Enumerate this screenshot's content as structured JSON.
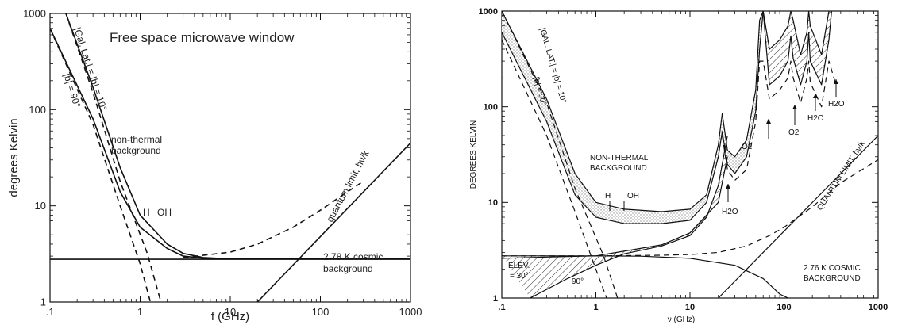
{
  "chart_data": [
    {
      "type": "line",
      "title": "Free space microwave window",
      "xlabel": "f (GHz)",
      "ylabel": "degrees Kelvin",
      "x_scale": "log",
      "y_scale": "log",
      "xlim": [
        0.1,
        1000
      ],
      "ylim": [
        1,
        1000
      ],
      "xticks": [
        ".1",
        "1",
        "10",
        "100",
        "1000"
      ],
      "yticks": [
        "1",
        "10",
        "100",
        "1000"
      ],
      "series": [
        {
          "style": "solid",
          "x": [
            0.1,
            0.3,
            0.6,
            1,
            2,
            3,
            5,
            10,
            1000
          ],
          "y": [
            700,
            80,
            14,
            6,
            3.6,
            3.0,
            2.85,
            2.8,
            2.8
          ]
        },
        {
          "style": "solid",
          "x": [
            0.15,
            0.3,
            0.6,
            1,
            2,
            3,
            5,
            10
          ],
          "y": [
            1000,
            170,
            25,
            8,
            4.0,
            3.2,
            2.9,
            2.8
          ]
        },
        {
          "style": "dashed",
          "x": [
            0.1,
            0.3,
            0.6,
            1.0,
            1.3
          ],
          "y": [
            700,
            70,
            10,
            2.5,
            1
          ]
        },
        {
          "style": "dashed",
          "x": [
            0.15,
            0.3,
            0.6,
            1.2,
            1.7
          ],
          "y": [
            1000,
            150,
            18,
            3.2,
            1
          ]
        },
        {
          "style": "dashed",
          "x": [
            3,
            10,
            20,
            50,
            100,
            200,
            300
          ],
          "y": [
            2.9,
            3.3,
            4.0,
            6.0,
            9.0,
            14.0,
            18.0
          ]
        },
        {
          "style": "solid",
          "x": [
            0.1,
            1000
          ],
          "y": [
            2.78,
            2.78
          ]
        },
        {
          "style": "solid",
          "x": [
            20,
            1000
          ],
          "y": [
            1,
            45
          ]
        }
      ],
      "annotations": [
        "|Gal. Lat.| = |b| = 10°",
        "|b| = 90°",
        "non-thermal",
        "background",
        "H",
        "OH",
        "quantum limit, hν/k",
        "2.78 K cosmic",
        "background"
      ]
    },
    {
      "type": "line",
      "xlabel": "ν (GHz)",
      "ylabel": "DEGREES KELVIN",
      "x_scale": "log",
      "y_scale": "log",
      "xlim": [
        0.1,
        1000
      ],
      "ylim": [
        1,
        1000
      ],
      "xticks": [
        ".1",
        "1",
        "10",
        "100",
        "1000"
      ],
      "yticks": [
        "1",
        "10",
        "100",
        "1000"
      ],
      "series": [
        {
          "style": "solid",
          "x": [
            0.1,
            0.3,
            0.6,
            1,
            2,
            5,
            10,
            15,
            20,
            22,
            25,
            30,
            40,
            50,
            55,
            60
          ],
          "y": [
            1000,
            120,
            20,
            10,
            8.5,
            8,
            8.5,
            12,
            40,
            85,
            35,
            30,
            45,
            150,
            800,
            1000
          ]
        },
        {
          "style": "solid",
          "x": [
            0.1,
            0.3,
            0.6,
            1,
            2,
            5,
            10,
            15,
            20,
            22,
            25,
            30,
            40,
            50,
            55,
            60
          ],
          "y": [
            600,
            70,
            12,
            7,
            6.0,
            6,
            6.5,
            10,
            30,
            55,
            25,
            20,
            30,
            90,
            400,
            1000
          ]
        },
        {
          "style": "solid",
          "x": [
            60,
            70,
            90,
            110,
            118,
            125,
            150,
            175,
            183,
            190,
            250,
            300,
            320
          ],
          "y": [
            1000,
            400,
            500,
            700,
            1000,
            800,
            350,
            600,
            1000,
            700,
            350,
            1000,
            1000
          ]
        },
        {
          "style": "solid",
          "x": [
            60,
            70,
            90,
            110,
            118,
            125,
            150,
            175,
            183,
            190,
            250,
            300,
            320
          ],
          "y": [
            1000,
            170,
            210,
            300,
            550,
            320,
            170,
            300,
            600,
            300,
            170,
            500,
            1000
          ]
        },
        {
          "style": "dashed",
          "x": [
            22,
            25,
            30,
            40,
            50,
            55,
            60,
            70,
            90,
            110,
            118,
            125,
            150,
            175,
            183,
            190,
            250,
            300,
            350
          ],
          "y": [
            50,
            22,
            17,
            22,
            70,
            300,
            300,
            120,
            150,
            200,
            300,
            200,
            110,
            200,
            300,
            180,
            100,
            300,
            180
          ]
        },
        {
          "style": "dashed",
          "x": [
            0.1,
            0.3,
            0.6,
            1.0,
            1.3
          ],
          "y": [
            500,
            50,
            8,
            2,
            1
          ]
        },
        {
          "style": "dashed",
          "x": [
            0.1,
            0.3,
            0.6,
            1.2,
            1.7
          ],
          "y": [
            1000,
            110,
            14,
            2.8,
            1
          ]
        },
        {
          "style": "solid",
          "x": [
            0.2,
            0.5,
            1,
            2,
            5,
            10,
            15,
            20,
            25
          ],
          "y": [
            1,
            1.6,
            2.2,
            2.9,
            3.5,
            4.5,
            7,
            15,
            50
          ]
        },
        {
          "style": "solid",
          "x": [
            0.1,
            0.3,
            1,
            5,
            10,
            20,
            25
          ],
          "y": [
            2.76,
            2.76,
            2.76,
            3.6,
            4.8,
            10,
            30
          ]
        },
        {
          "style": "dashed",
          "x": [
            0.1,
            1,
            5,
            10,
            20,
            40,
            70,
            100,
            200,
            400,
            1000
          ],
          "y": [
            2.76,
            2.76,
            2.8,
            2.85,
            3.0,
            3.5,
            4.5,
            5.5,
            9,
            16,
            28
          ]
        },
        {
          "style": "solid",
          "x": [
            0.1,
            0.3,
            1,
            3,
            10,
            30,
            60,
            90,
            110
          ],
          "y": [
            2.6,
            2.68,
            2.76,
            2.74,
            2.6,
            2.2,
            1.6,
            1.1,
            1
          ]
        },
        {
          "style": "solid",
          "x": [
            20,
            1000
          ],
          "y": [
            1,
            50
          ]
        }
      ],
      "annotations": [
        "|GAL. LAT.| = |b| = 10°",
        "|b| = 90°",
        "NON-THERMAL",
        "BACKGROUND",
        "H",
        "OH",
        "H2O",
        "O2",
        "O2",
        "H2O",
        "H2O",
        "QUANTUM LIMIT, hν/k",
        "2.76 K COSMIC",
        "BACKGROUND",
        "ELEV.",
        "= 30°",
        "90°"
      ]
    }
  ],
  "left": {
    "title": "Free space microwave window",
    "xlabel": "f (GHz)",
    "ylabel": "degrees Kelvin",
    "xticks": [
      ".1",
      "1",
      "10",
      "100",
      "1000"
    ],
    "yticks": [
      "1",
      "10",
      "100",
      "1000"
    ],
    "annot_gal": "|Gal. Lat.| = |b| = 10°",
    "annot_b90": "|b| = 90°",
    "annot_nt1": "non-thermal",
    "annot_nt2": "background",
    "annot_h": "H",
    "annot_oh": "OH",
    "annot_quantum": "quantum limit, hν/k",
    "annot_cmb1": "2.78 K cosmic",
    "annot_cmb2": "background"
  },
  "right": {
    "xlabel": "ν (GHz)",
    "ylabel": "DEGREES KELVIN",
    "xticks": [
      ".1",
      "1",
      "10",
      "100",
      "1000"
    ],
    "yticks": [
      "1",
      "10",
      "100",
      "1000"
    ],
    "annot_gal": "|GAL. LAT.| = |b| = 10°",
    "annot_b90": "|b| = 90°",
    "annot_nt1": "NON-THERMAL",
    "annot_nt2": "BACKGROUND",
    "annot_h": "H",
    "annot_oh": "OH",
    "annot_h2o_1": "H2O",
    "annot_o2_1": "O2",
    "annot_o2_2": "O2",
    "annot_h2o_2": "H2O",
    "annot_h2o_3": "H2O",
    "annot_quantum": "QUANTUM LIMIT, hν/k",
    "annot_cmb1": "2.76 K COSMIC",
    "annot_cmb2": "BACKGROUND",
    "annot_elev1": "ELEV.",
    "annot_elev2": "= 30°",
    "annot_90": "90°"
  }
}
